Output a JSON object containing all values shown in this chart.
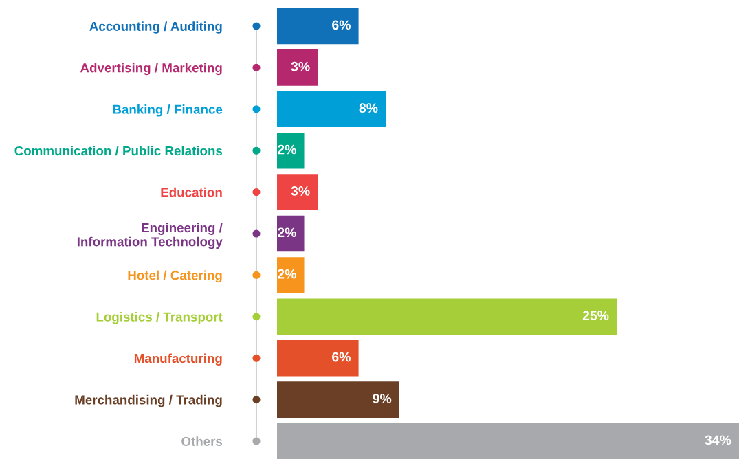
{
  "chart_data": {
    "type": "bar",
    "orientation": "horizontal",
    "categories": [
      "Accounting / Auditing",
      "Advertising / Marketing",
      "Banking / Finance",
      "Communication / Public Relations",
      "Education",
      "Engineering /\nInformation Technology",
      "Hotel / Catering",
      "Logistics / Transport",
      "Manufacturing",
      "Merchandising / Trading",
      "Others"
    ],
    "values": [
      6,
      3,
      8,
      2,
      3,
      2,
      2,
      25,
      6,
      9,
      34
    ],
    "colors": [
      "#1070b8",
      "#b5286e",
      "#009fd8",
      "#00a88a",
      "#ef4444",
      "#7b3585",
      "#f7941d",
      "#a6ce39",
      "#e4502a",
      "#6b3f26",
      "#a7a9ac"
    ],
    "value_labels": [
      "6%",
      "3%",
      "8%",
      "2%",
      "3%",
      "2%",
      "2%",
      "25%",
      "6%",
      "9%",
      "34%"
    ],
    "grid": false,
    "legend": false
  }
}
